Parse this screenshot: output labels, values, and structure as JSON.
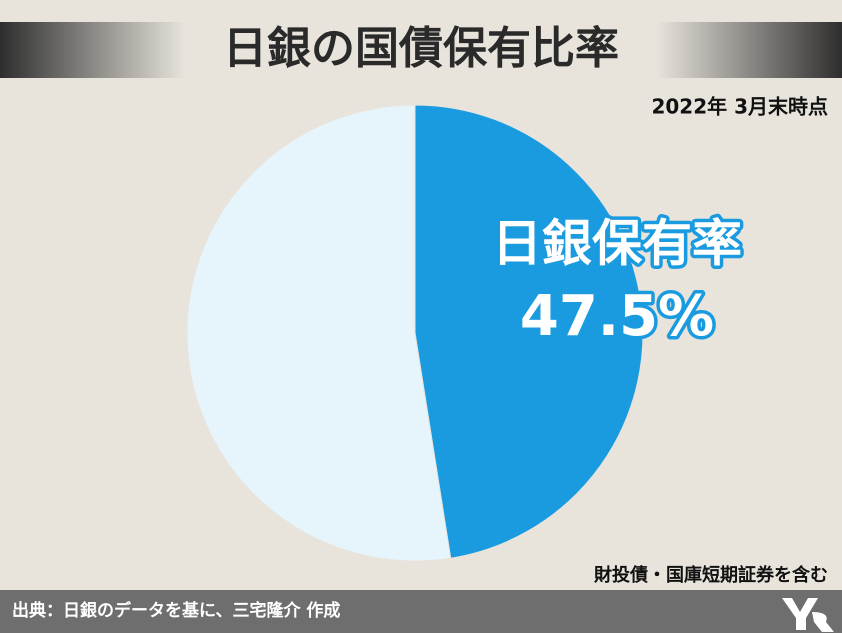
{
  "chart_data": {
    "type": "pie",
    "title": "日銀の国債保有比率",
    "subtitle": "2022年 3月末時点",
    "note": "財投債・国庫短期証券を含む",
    "source": "出典：日銀のデータを基に、三宅隆介 作成",
    "categories": [
      "日銀保有率",
      null
    ],
    "values": [
      47.5,
      52.5
    ],
    "value_labels": [
      "47.5%",
      null
    ],
    "colors": [
      "#1a9be0",
      "#e6f4fc"
    ]
  }
}
